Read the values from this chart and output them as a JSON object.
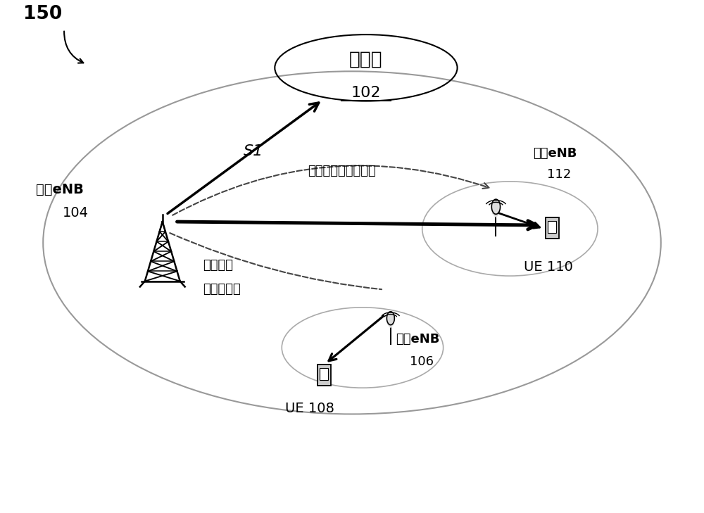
{
  "bg_color": "#ffffff",
  "fig_label": "150",
  "core_net_label": "核心网",
  "core_net_id": "102",
  "anchor_enb_label": "锄定eNB",
  "anchor_enb_id": "104",
  "enb112_label": "增强eNB",
  "enb112_id": "112",
  "enb106_label": "增强eNB",
  "enb106_id": "106",
  "ue110_label": "UE 110",
  "ue108_label": "UE 108",
  "backhaul_top": "非理想或理想的回程",
  "backhaul_left_line1": "非理想或",
  "backhaul_left_line2": "理想的回程",
  "s1_label": "S1",
  "text_color": "#000000",
  "arrow_color": "#000000",
  "ellipse_color": "#aaaaaa",
  "dashed_color": "#555555"
}
